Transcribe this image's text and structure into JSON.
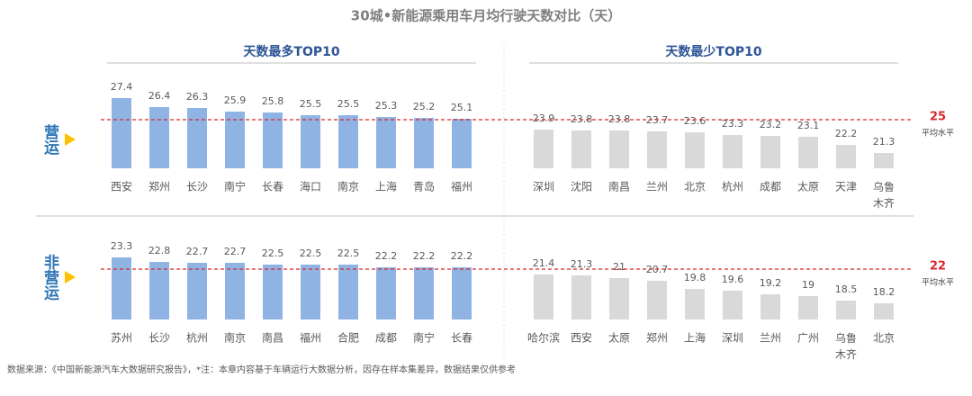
{
  "title": "30城•新能源乘用车月均行驶天数对比（天）",
  "source": "数据来源：《中国新能源汽车大数据研究报告》，*注：本章内容基于车辆运行大数据分析，因存在样本集差异，数据结果仅供参考",
  "chart_data": [
    {
      "type": "bar",
      "title": "天数最多TOP10",
      "row_label": "营运",
      "color": "#8fb4e3",
      "categories": [
        "西安",
        "郑州",
        "长沙",
        "南宁",
        "长春",
        "海口",
        "南京",
        "上海",
        "青岛",
        "福州"
      ],
      "values": [
        27.4,
        26.4,
        26.3,
        25.9,
        25.8,
        25.5,
        25.5,
        25.3,
        25.2,
        25.1
      ],
      "ylim": [
        19.6,
        27.6
      ]
    },
    {
      "type": "bar",
      "title": "天数最少TOP10",
      "color": "#d9d9d9",
      "categories": [
        "深圳",
        "沈阳",
        "南昌",
        "兰州",
        "北京",
        "杭州",
        "成都",
        "太原",
        "天津",
        "乌鲁木齐"
      ],
      "values": [
        23.9,
        23.8,
        23.8,
        23.7,
        23.6,
        23.3,
        23.2,
        23.1,
        22.2,
        21.3
      ],
      "ylim": [
        19.6,
        27.6
      ],
      "reference": {
        "value": 25,
        "label": "平均水平",
        "color": "#d9262b"
      }
    },
    {
      "type": "bar",
      "row_label": "非营运",
      "color": "#8fb4e3",
      "categories": [
        "苏州",
        "长沙",
        "杭州",
        "南京",
        "南昌",
        "福州",
        "合肥",
        "成都",
        "南宁",
        "长春"
      ],
      "values": [
        23.3,
        22.8,
        22.7,
        22.7,
        22.5,
        22.5,
        22.5,
        22.2,
        22.2,
        22.2
      ],
      "ylim": [
        16.4,
        24.4
      ]
    },
    {
      "type": "bar",
      "color": "#d9d9d9",
      "categories": [
        "哈尔滨",
        "西安",
        "太原",
        "郑州",
        "上海",
        "深圳",
        "兰州",
        "广州",
        "乌鲁木齐",
        "北京"
      ],
      "values": [
        21.4,
        21.3,
        21.0,
        20.7,
        19.8,
        19.6,
        19.2,
        19.0,
        18.5,
        18.2
      ],
      "ylim": [
        16.4,
        24.4
      ],
      "reference": {
        "value": 22,
        "label": "平均水平",
        "color": "#d9262b"
      }
    }
  ]
}
